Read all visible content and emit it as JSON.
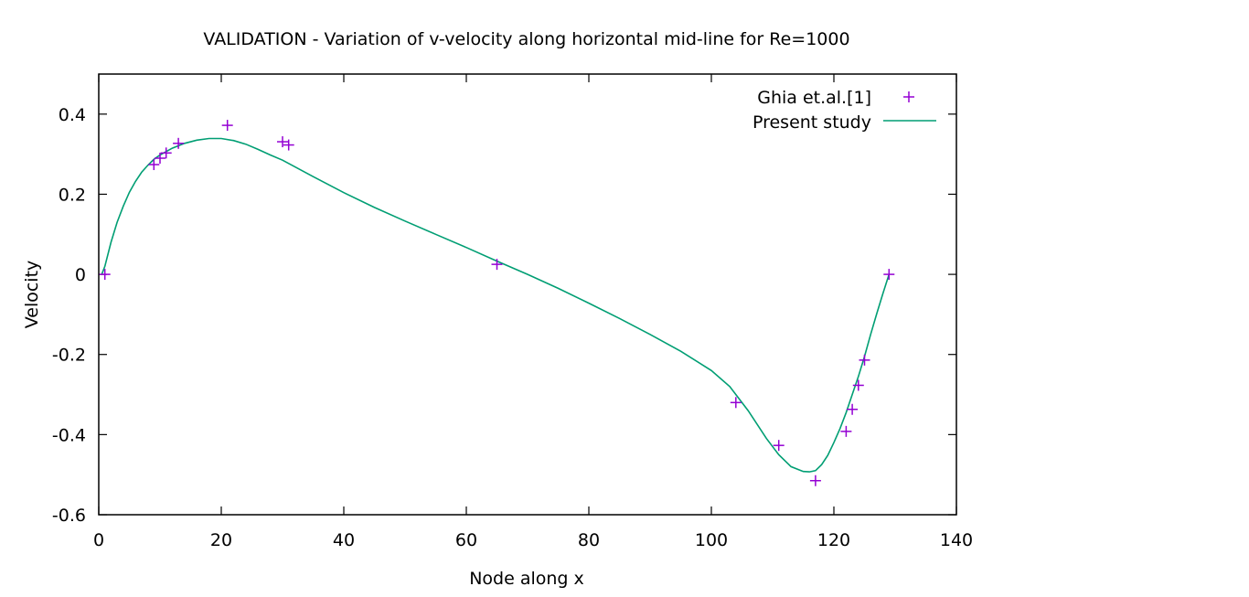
{
  "chart_data": {
    "type": "line",
    "title": "VALIDATION - Variation of v-velocity along horizontal mid-line for Re=1000",
    "xlabel": "Node along x",
    "ylabel": "Velocity",
    "xlim": [
      0,
      140
    ],
    "ylim": [
      -0.6,
      0.5
    ],
    "xticks": [
      0,
      20,
      40,
      60,
      80,
      100,
      120,
      140
    ],
    "yticks": [
      -0.6,
      -0.4,
      -0.2,
      0,
      0.2,
      0.4
    ],
    "xtick_labels": [
      "0",
      "20",
      "40",
      "60",
      "80",
      "100",
      "120",
      "140"
    ],
    "ytick_labels": [
      "-0.6",
      "-0.4",
      "-0.2",
      "0",
      "0.2",
      "0.4"
    ],
    "grid": false,
    "legend_position": "top-right",
    "series": [
      {
        "name": "Ghia et.al.[1]",
        "style": "points",
        "marker": "plus",
        "color": "#9400d3",
        "x": [
          1,
          9,
          10,
          11,
          13,
          21,
          30,
          31,
          65,
          104,
          111,
          117,
          122,
          123,
          124,
          125,
          129
        ],
        "y": [
          0.0,
          0.274,
          0.29,
          0.303,
          0.327,
          0.372,
          0.331,
          0.323,
          0.025,
          -0.32,
          -0.427,
          -0.515,
          -0.392,
          -0.337,
          -0.277,
          -0.214,
          0.0
        ]
      },
      {
        "name": "Present study",
        "style": "line",
        "color": "#009e73",
        "x": [
          0.5,
          1,
          2,
          3,
          4,
          5,
          6,
          7,
          8,
          9,
          10,
          12,
          14,
          16,
          18,
          20,
          22,
          24,
          26,
          28,
          30,
          35,
          40,
          45,
          50,
          55,
          60,
          65,
          70,
          75,
          80,
          85,
          90,
          95,
          100,
          103,
          106,
          109,
          111,
          113,
          115,
          116,
          117,
          118,
          119,
          120,
          121,
          122,
          123,
          124,
          125,
          126,
          127,
          128,
          129
        ],
        "y": [
          0.0,
          0.02,
          0.08,
          0.13,
          0.17,
          0.205,
          0.232,
          0.255,
          0.272,
          0.287,
          0.298,
          0.315,
          0.327,
          0.335,
          0.339,
          0.339,
          0.334,
          0.325,
          0.312,
          0.298,
          0.285,
          0.244,
          0.204,
          0.167,
          0.133,
          0.1,
          0.067,
          0.033,
          0.0,
          -0.035,
          -0.072,
          -0.11,
          -0.15,
          -0.192,
          -0.24,
          -0.28,
          -0.34,
          -0.41,
          -0.45,
          -0.48,
          -0.492,
          -0.493,
          -0.49,
          -0.475,
          -0.452,
          -0.42,
          -0.385,
          -0.345,
          -0.3,
          -0.255,
          -0.205,
          -0.15,
          -0.098,
          -0.048,
          0.0
        ]
      }
    ]
  }
}
